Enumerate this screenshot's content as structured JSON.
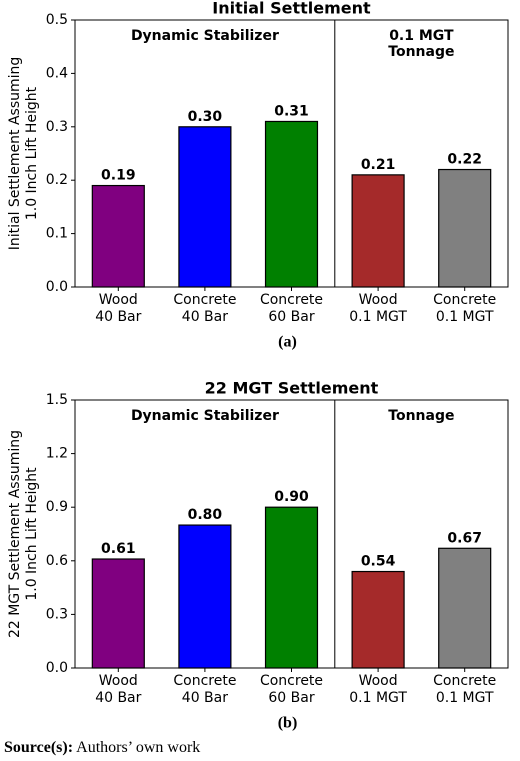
{
  "chart_data": [
    {
      "type": "bar",
      "title": "Initial Settlement",
      "ylabel": [
        "Initial Settlement Assuming",
        "1.0 Inch Lift Height"
      ],
      "categories": [
        [
          "Wood",
          "40 Bar"
        ],
        [
          "Concrete",
          "40 Bar"
        ],
        [
          "Concrete",
          "60 Bar"
        ],
        [
          "Wood",
          "0.1 MGT"
        ],
        [
          "Concrete",
          "0.1 MGT"
        ]
      ],
      "values": [
        0.19,
        0.3,
        0.31,
        0.21,
        0.22
      ],
      "value_labels": [
        "0.19",
        "0.30",
        "0.31",
        "0.21",
        "0.22"
      ],
      "colors": [
        "#800080",
        "#0000ff",
        "#008000",
        "#a52a2a",
        "#808080"
      ],
      "ylim": [
        0,
        0.5
      ],
      "yticks": [
        {
          "value": 0,
          "label": "0.0"
        },
        0.1,
        0.2,
        0.3,
        0.4,
        0.5
      ],
      "group_labels": [
        [
          "Dynamic Stabilizer"
        ],
        [
          "0.1 MGT",
          "Tonnage"
        ]
      ],
      "caption": "(a)"
    },
    {
      "type": "bar",
      "title": "22 MGT Settlement",
      "ylabel": [
        "22 MGT Settlement Assuming",
        "1.0 Inch Lift Height"
      ],
      "categories": [
        [
          "Wood",
          "40 Bar"
        ],
        [
          "Concrete",
          "40 Bar"
        ],
        [
          "Concrete",
          "60 Bar"
        ],
        [
          "Wood",
          "0.1 MGT"
        ],
        [
          "Concrete",
          "0.1 MGT"
        ]
      ],
      "values": [
        0.61,
        0.8,
        0.9,
        0.54,
        0.67
      ],
      "value_labels": [
        "0.61",
        "0.80",
        "0.90",
        "0.54",
        "0.67"
      ],
      "colors": [
        "#800080",
        "#0000ff",
        "#008000",
        "#a52a2a",
        "#808080"
      ],
      "ylim": [
        0,
        1.5
      ],
      "yticks": [
        {
          "value": 0,
          "label": "0.0"
        },
        0.3,
        0.6,
        0.9,
        1.2,
        1.5
      ],
      "group_labels": [
        [
          "Dynamic Stabilizer"
        ],
        [
          "Tonnage"
        ]
      ],
      "caption": "(b)"
    }
  ],
  "source": {
    "label": "Source(s):",
    "text": "Authors’ own work"
  }
}
